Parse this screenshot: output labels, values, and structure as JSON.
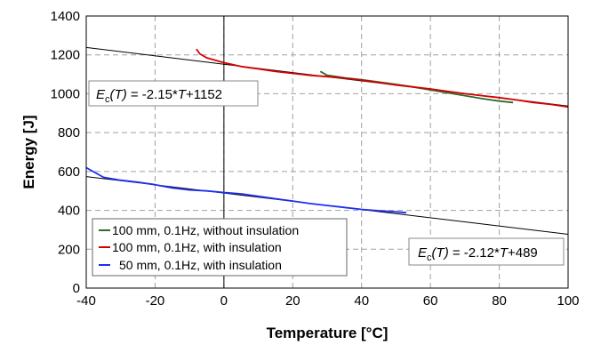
{
  "chart_data": {
    "type": "line",
    "xlabel": "Temperature [°C]",
    "ylabel": "Energy [J]",
    "xlim": [
      -40,
      100
    ],
    "ylim": [
      0,
      1400
    ],
    "xticks": [
      "-40",
      "-20",
      "0",
      "20",
      "40",
      "60",
      "80",
      "100"
    ],
    "yticks": [
      "0",
      "200",
      "400",
      "600",
      "800",
      "1000",
      "1200",
      "1400"
    ],
    "grid": true,
    "legend_position": "bottom-left",
    "series": [
      {
        "name": "100 mm, 0.1Hz, without  insulation",
        "color": "#2e6b2e",
        "x": [
          28,
          30,
          35,
          40,
          45,
          50,
          55,
          60,
          65,
          70,
          75,
          80,
          84
        ],
        "y": [
          1115,
          1095,
          1082,
          1072,
          1060,
          1048,
          1035,
          1020,
          1005,
          990,
          975,
          962,
          955
        ]
      },
      {
        "name": "100 mm, 0.1Hz, with insulation",
        "color": "#d40000",
        "x": [
          -8,
          -7,
          -5,
          0,
          5,
          10,
          15,
          20,
          25,
          30,
          35,
          40,
          45,
          50,
          55,
          60,
          65,
          70,
          75,
          80,
          85,
          90,
          95,
          100
        ],
        "y": [
          1230,
          1205,
          1185,
          1160,
          1140,
          1128,
          1115,
          1105,
          1095,
          1088,
          1080,
          1070,
          1058,
          1045,
          1035,
          1025,
          1012,
          1000,
          990,
          980,
          968,
          955,
          945,
          932
        ]
      },
      {
        "name": "50 mm, 0.1Hz, with insulation",
        "color": "#1f2ef0",
        "x": [
          -40,
          -38,
          -35,
          -30,
          -25,
          -20,
          -15,
          -10,
          -5,
          0,
          5,
          10,
          15,
          20,
          25,
          30,
          35,
          40,
          45,
          50,
          53
        ],
        "y": [
          620,
          600,
          570,
          555,
          545,
          532,
          515,
          505,
          500,
          492,
          485,
          472,
          460,
          448,
          435,
          425,
          415,
          405,
          398,
          392,
          388
        ]
      }
    ],
    "fit_lines": [
      {
        "slope": -2.15,
        "intercept": 1152,
        "color": "#000000"
      },
      {
        "slope": -2.12,
        "intercept": 489,
        "color": "#000000"
      }
    ],
    "annotations": [
      {
        "eq_symbol": "E",
        "eq_sub": "c",
        "eq_arg_pre": "(",
        "eq_arg_var": "T",
        "eq_arg_post": ")",
        "eq_mid": " = -2.15*",
        "eq_var": "T",
        "eq_tail": "+1152"
      },
      {
        "eq_symbol": "E",
        "eq_sub": "c",
        "eq_arg_pre": "(",
        "eq_arg_var": "T",
        "eq_arg_post": ")",
        "eq_mid": " = -2.12*",
        "eq_var": "T",
        "eq_tail": "+489"
      }
    ]
  }
}
